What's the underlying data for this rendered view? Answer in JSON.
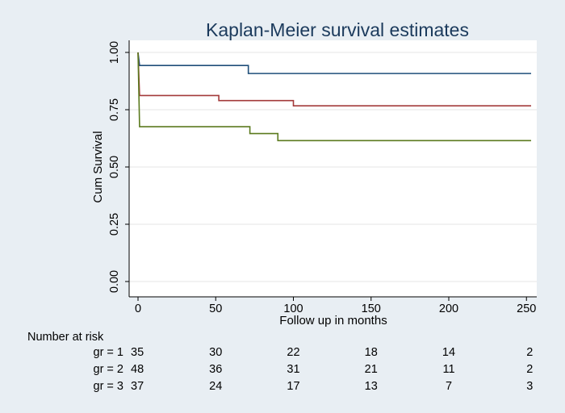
{
  "chart_data": {
    "type": "line",
    "step": true,
    "title": "Kaplan-Meier survival estimates",
    "xlabel": "Follow up in months",
    "ylabel": "Cum Survival",
    "xlim": [
      0,
      255
    ],
    "ylim": [
      0,
      1
    ],
    "xticks": [
      0,
      50,
      100,
      150,
      200,
      250
    ],
    "yticks": [
      0,
      0.25,
      0.5,
      0.75,
      1
    ],
    "ytick_labels": [
      "0.00",
      "0.25",
      "0.50",
      "0.75",
      "1.00"
    ],
    "grid": "horizontal",
    "legend": "none",
    "series": [
      {
        "color": "#1f4e79",
        "points": [
          [
            0,
            1.0
          ],
          [
            1,
            0.943
          ],
          [
            71,
            0.943
          ],
          [
            71,
            0.908
          ],
          [
            253,
            0.908
          ]
        ]
      },
      {
        "color": "#a33a3a",
        "points": [
          [
            0,
            1.0
          ],
          [
            1,
            0.812
          ],
          [
            52,
            0.812
          ],
          [
            52,
            0.79
          ],
          [
            100,
            0.79
          ],
          [
            100,
            0.767
          ],
          [
            253,
            0.767
          ]
        ]
      },
      {
        "color": "#5b7a1e",
        "points": [
          [
            0,
            1.0
          ],
          [
            1,
            0.676
          ],
          [
            72,
            0.676
          ],
          [
            72,
            0.646
          ],
          [
            90,
            0.646
          ],
          [
            90,
            0.615
          ],
          [
            253,
            0.615
          ]
        ]
      }
    ],
    "risk_table": {
      "heading": "Number at risk",
      "times": [
        0,
        50,
        100,
        150,
        200,
        250
      ],
      "rows": [
        {
          "label": "gr = 1",
          "counts": [
            "35",
            "30",
            "22",
            "18",
            "14",
            "2"
          ]
        },
        {
          "label": "gr = 2",
          "counts": [
            "48",
            "36",
            "31",
            "21",
            "11",
            "2"
          ]
        },
        {
          "label": "gr = 3",
          "counts": [
            "37",
            "24",
            "17",
            "13",
            "7",
            "3"
          ]
        }
      ]
    },
    "colors": {
      "outer_background": "#e8eef3",
      "plot_background": "#ffffff",
      "gridline": "#e6e6e6",
      "axis": "#000000",
      "title": "#1b3a5c"
    }
  }
}
